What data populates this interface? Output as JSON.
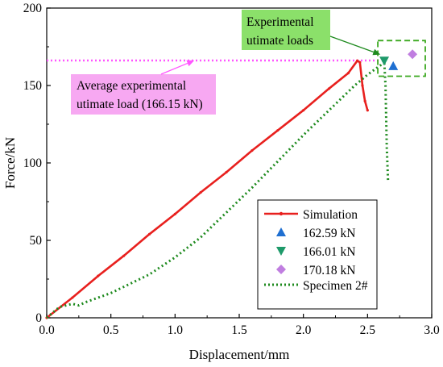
{
  "chart_data": {
    "type": "line",
    "xlabel": "Displacement/mm",
    "ylabel": "Force/kN",
    "xlim": [
      0,
      3.0
    ],
    "ylim": [
      0,
      200
    ],
    "xticks": [
      "0.0",
      "0.5",
      "1.0",
      "1.5",
      "2.0",
      "2.5",
      "3.0"
    ],
    "yticks": [
      "0",
      "50",
      "100",
      "150",
      "200"
    ],
    "grid": false,
    "legend": {
      "placement": "bottom-right",
      "entries": [
        "Simulation",
        "162.59 kN",
        "166.01 kN",
        "170.18 kN",
        "Specimen 2#"
      ]
    },
    "series": [
      {
        "name": "Simulation",
        "color": "#e8201e",
        "style": "solid-with-dots",
        "x": [
          0.0,
          0.2,
          0.4,
          0.6,
          0.8,
          1.0,
          1.2,
          1.4,
          1.6,
          1.8,
          2.0,
          2.2,
          2.35,
          2.42,
          2.44,
          2.46,
          2.48,
          2.5
        ],
        "y": [
          0,
          13,
          27,
          40,
          54,
          67,
          81,
          94,
          108,
          121,
          134,
          148,
          158,
          166,
          165,
          150,
          140,
          134
        ]
      },
      {
        "name": "Specimen 2#",
        "color": "#1e8a1e",
        "style": "dotted",
        "x": [
          0.0,
          0.1,
          0.2,
          0.25,
          0.3,
          0.5,
          0.8,
          1.0,
          1.2,
          1.4,
          1.6,
          1.8,
          2.0,
          2.2,
          2.4,
          2.5,
          2.6,
          2.63,
          2.64,
          2.65,
          2.66
        ],
        "y": [
          0,
          7,
          9,
          8,
          10,
          16,
          28,
          39,
          52,
          68,
          84,
          101,
          118,
          134,
          150,
          157,
          163,
          166,
          150,
          110,
          88
        ]
      },
      {
        "name": "162.59 kN",
        "color": "#1f6fd1",
        "marker": "triangle-up",
        "x": [
          2.7
        ],
        "y": [
          162.59
        ]
      },
      {
        "name": "166.01 kN",
        "color": "#1e9a6a",
        "marker": "triangle-down",
        "x": [
          2.63
        ],
        "y": [
          166.01
        ]
      },
      {
        "name": "170.18 kN",
        "color": "#c07ee0",
        "marker": "diamond",
        "x": [
          2.85
        ],
        "y": [
          170.18
        ]
      }
    ],
    "reference_line": {
      "y": 166.15,
      "x_range": [
        0,
        2.6
      ],
      "color": "#ff55ff",
      "style": "dotted"
    },
    "annotations": [
      {
        "text_lines": [
          "Average experimental",
          "utimate load (166.15 kN)"
        ],
        "background": "#f7a8f2",
        "arrow_to": {
          "x": 1.15,
          "y": 166.15
        },
        "arrow_color": "#ff55ff"
      },
      {
        "text_lines": [
          "Experimental",
          "utimate loads"
        ],
        "background": "#8be06a",
        "arrow_to": {
          "x": 2.6,
          "y": 170
        },
        "arrow_color": "#1e8a1e"
      }
    ],
    "highlight_box": {
      "x_range": [
        2.58,
        3.0
      ],
      "y_range": [
        156,
        179
      ],
      "color": "#3aa81e",
      "style": "dashed"
    }
  }
}
